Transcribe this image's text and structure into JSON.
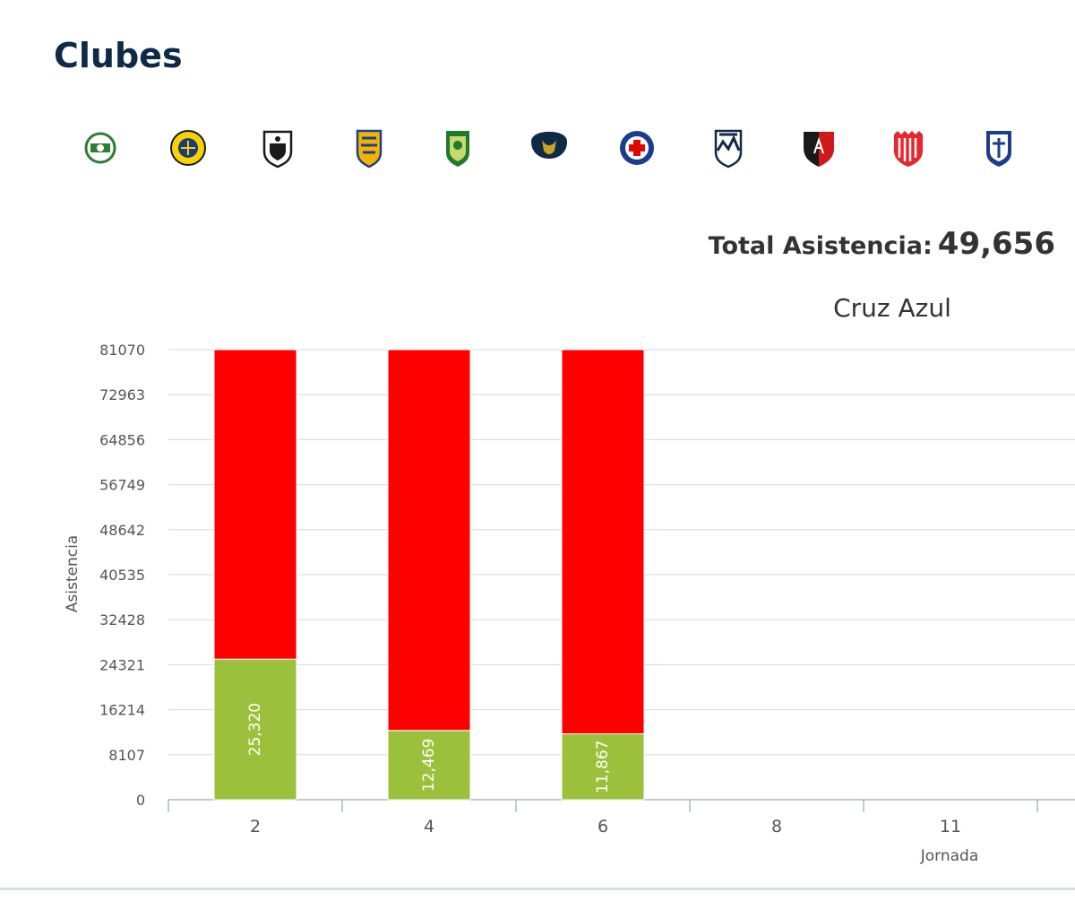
{
  "page": {
    "title": "Clubes",
    "total_label": "Total Asistencia:",
    "total_value": "49,656"
  },
  "club_logos": [
    {
      "icon": "santos-crest-icon",
      "colors": [
        "#ffffff",
        "#2e7d32"
      ]
    },
    {
      "icon": "america-crest-icon",
      "colors": [
        "#f7d400",
        "#1f3a7a"
      ]
    },
    {
      "icon": "queretaro-crest-icon",
      "colors": [
        "#ffffff",
        "#1a1a1a"
      ]
    },
    {
      "icon": "tigres-crest-icon",
      "colors": [
        "#f5b301",
        "#1c3f8f"
      ]
    },
    {
      "icon": "leon-crest-icon",
      "colors": [
        "#1f7a2e",
        "#c8d86a"
      ]
    },
    {
      "icon": "pumas-crest-icon",
      "colors": [
        "#0e2a47",
        "#c9a227"
      ]
    },
    {
      "icon": "cruz-azul-crest-icon",
      "colors": [
        "#1d3c8f",
        "#e10600"
      ]
    },
    {
      "icon": "monterrey-crest-icon",
      "colors": [
        "#0e2a47",
        "#ffffff"
      ]
    },
    {
      "icon": "atlas-crest-icon",
      "colors": [
        "#1a1a1a",
        "#d01a1a"
      ]
    },
    {
      "icon": "necaxa-crest-icon",
      "colors": [
        "#e8262e",
        "#ffffff"
      ]
    },
    {
      "icon": "puebla-crest-icon",
      "colors": [
        "#1d3c8f",
        "#ffffff"
      ]
    }
  ],
  "chart_data": {
    "type": "bar",
    "stacked": true,
    "title": "Cruz Azul",
    "xlabel": "Jornada",
    "ylabel": "Asistencia",
    "categories": [
      "2",
      "4",
      "6",
      "8",
      "11"
    ],
    "yticks": [
      0,
      8107,
      16214,
      24321,
      32428,
      40535,
      48642,
      56749,
      64856,
      72963,
      81070
    ],
    "ylim": [
      0,
      81070
    ],
    "grid": true,
    "series": [
      {
        "values": [
          25320,
          12469,
          11867,
          null,
          null
        ],
        "labels": [
          "25,320",
          "12,469",
          "11,867",
          "",
          ""
        ],
        "color": "#9bc13c"
      },
      {
        "values": [
          55750,
          68601,
          69203,
          null,
          null
        ],
        "color": "#ff0000"
      }
    ]
  }
}
